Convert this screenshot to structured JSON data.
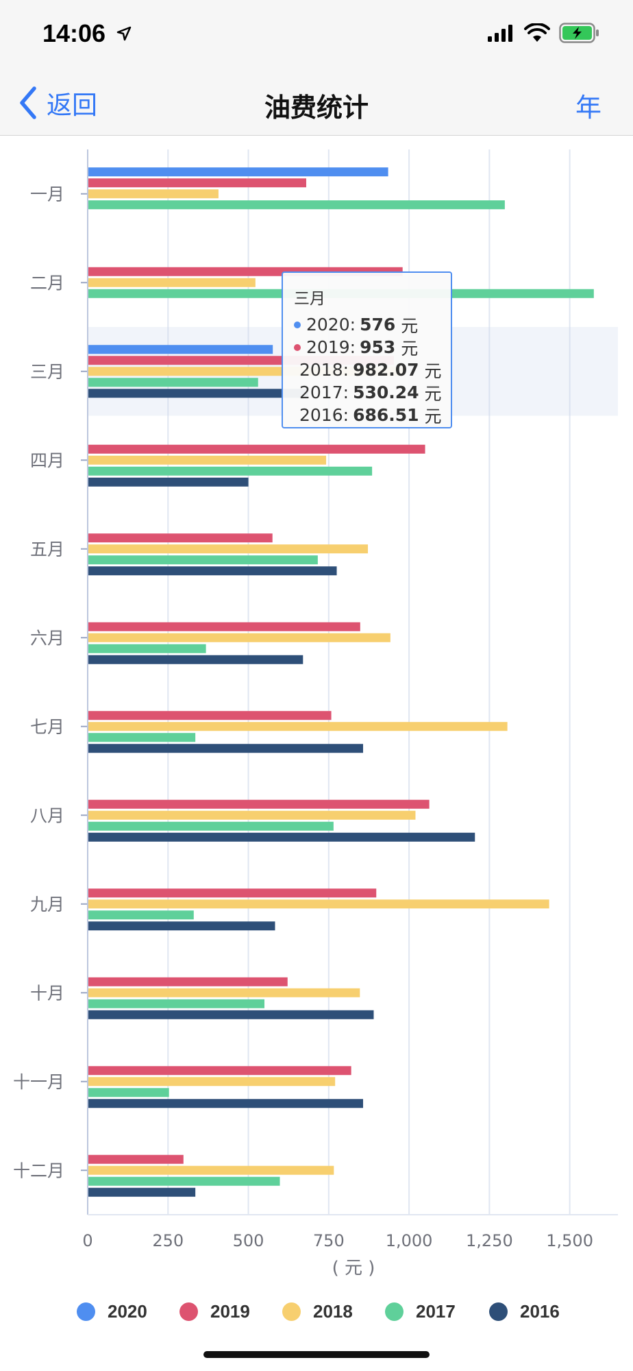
{
  "status_bar": {
    "time": "14:06"
  },
  "nav": {
    "back_label": "返回",
    "title": "油费统计",
    "right_label": "年"
  },
  "tooltip": {
    "title": "三月",
    "rows": [
      {
        "series": "2020",
        "value": "576",
        "unit": "元",
        "color": "#4f8ef0"
      },
      {
        "series": "2019",
        "value": "953",
        "unit": "元",
        "color": "#dd5370"
      },
      {
        "series": "2018",
        "value": "982.07",
        "unit": "元",
        "color": "#f7cf6f"
      },
      {
        "series": "2017",
        "value": "530.24",
        "unit": "元",
        "color": "#5fd09a"
      },
      {
        "series": "2016",
        "value": "686.51",
        "unit": "元",
        "color": "#2e4f78"
      }
    ]
  },
  "legend": [
    {
      "label": "2020",
      "color": "#4f8ef0"
    },
    {
      "label": "2019",
      "color": "#dd5370"
    },
    {
      "label": "2018",
      "color": "#f7cf6f"
    },
    {
      "label": "2017",
      "color": "#5fd09a"
    },
    {
      "label": "2016",
      "color": "#2e4f78"
    }
  ],
  "chart_data": {
    "type": "bar",
    "orientation": "horizontal",
    "categories": [
      "一月",
      "二月",
      "三月",
      "四月",
      "五月",
      "六月",
      "七月",
      "八月",
      "九月",
      "十月",
      "十一月",
      "十二月"
    ],
    "xlabel": "( 元 )",
    "xlim": [
      0,
      1650
    ],
    "xticks": [
      0,
      250,
      500,
      750,
      1000,
      1250,
      1500
    ],
    "xtick_labels": [
      "0",
      "250",
      "500",
      "750",
      "1,000",
      "1,250",
      "1,500"
    ],
    "grid": true,
    "highlighted_category": "三月",
    "series": [
      {
        "name": "2020",
        "color": "#4f8ef0",
        "values": [
          935,
          null,
          576,
          null,
          null,
          null,
          null,
          null,
          null,
          null,
          null,
          null
        ]
      },
      {
        "name": "2019",
        "color": "#dd5370",
        "values": [
          680,
          980,
          953,
          1050,
          575,
          848,
          758,
          1063,
          898,
          622,
          820,
          298
        ]
      },
      {
        "name": "2018",
        "color": "#f7cf6f",
        "values": [
          407,
          522,
          982.07,
          742,
          872,
          942,
          1306,
          1020,
          1436,
          847,
          770,
          766
        ]
      },
      {
        "name": "2017",
        "color": "#5fd09a",
        "values": [
          1298,
          1575,
          530.24,
          885,
          716,
          368,
          335,
          765,
          330,
          550,
          253,
          598
        ]
      },
      {
        "name": "2016",
        "color": "#2e4f78",
        "values": [
          null,
          null,
          686.51,
          500,
          775,
          670,
          857,
          1205,
          583,
          890,
          857,
          335
        ]
      }
    ]
  }
}
